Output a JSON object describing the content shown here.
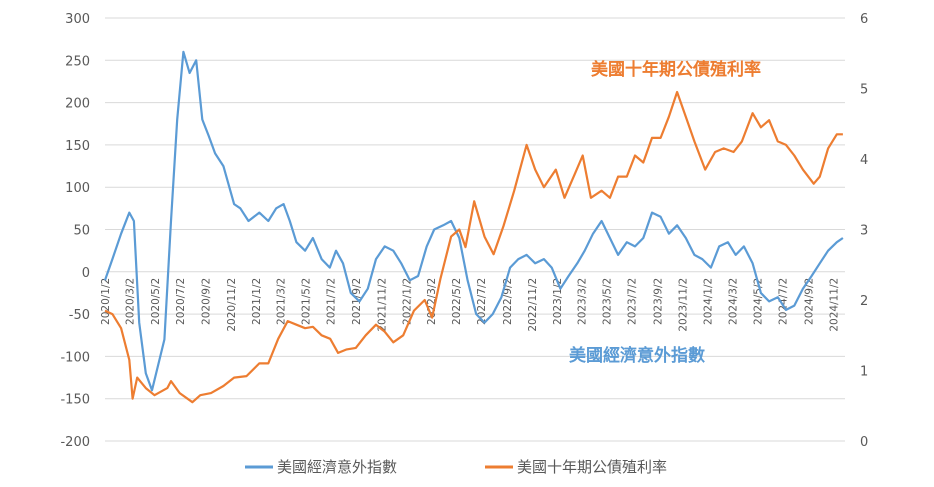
{
  "chart_data": {
    "type": "line",
    "title": "",
    "xlabel": "",
    "ylabel_left": "",
    "ylabel_right": "",
    "y_left_lim": [
      -200,
      300
    ],
    "y_left_ticks": [
      -200,
      -150,
      -100,
      -50,
      0,
      50,
      100,
      150,
      200,
      250,
      300
    ],
    "y_right_lim": [
      0,
      6
    ],
    "y_right_ticks": [
      0,
      1,
      2,
      3,
      4,
      5,
      6
    ],
    "x_lim": [
      "2020/1/2",
      "2024/11/30"
    ],
    "x_tick_labels": [
      "2020/1/2",
      "2020/3/2",
      "2020/5/2",
      "2020/7/2",
      "2020/9/2",
      "2020/11/2",
      "2021/1/2",
      "2021/3/2",
      "2021/5/2",
      "2021/7/2",
      "2021/9/2",
      "2021/11/2",
      "2022/1/2",
      "2022/3/2",
      "2022/5/2",
      "2022/7/2",
      "2022/9/2",
      "2022/11/2",
      "2023/1/2",
      "2023/3/2",
      "2023/5/2",
      "2023/7/2",
      "2023/9/2",
      "2023/11/2",
      "2024/1/2",
      "2024/3/2",
      "2024/5/2",
      "2024/7/2",
      "2024/9/2",
      "2024/11/2"
    ],
    "grid": "horizontal",
    "legend": "bottom",
    "series": [
      {
        "name": "美國經濟意外指數",
        "axis": "left",
        "color": "#5b9bd5",
        "points": [
          [
            "2020/1/2",
            -10
          ],
          [
            "2020/1/20",
            15
          ],
          [
            "2020/2/10",
            45
          ],
          [
            "2020/3/1",
            70
          ],
          [
            "2020/3/12",
            60
          ],
          [
            "2020/3/25",
            -60
          ],
          [
            "2020/4/10",
            -120
          ],
          [
            "2020/4/25",
            -140
          ],
          [
            "2020/5/10",
            -110
          ],
          [
            "2020/5/25",
            -80
          ],
          [
            "2020/6/10",
            60
          ],
          [
            "2020/6/25",
            180
          ],
          [
            "2020/7/10",
            260
          ],
          [
            "2020/7/25",
            235
          ],
          [
            "2020/8/10",
            250
          ],
          [
            "2020/8/25",
            180
          ],
          [
            "2020/9/10",
            160
          ],
          [
            "2020/9/25",
            140
          ],
          [
            "2020/10/15",
            125
          ],
          [
            "2020/11/10",
            80
          ],
          [
            "2020/11/25",
            75
          ],
          [
            "2020/12/15",
            60
          ],
          [
            "2021/1/10",
            70
          ],
          [
            "2021/2/1",
            60
          ],
          [
            "2021/2/20",
            75
          ],
          [
            "2021/3/10",
            80
          ],
          [
            "2021/3/25",
            60
          ],
          [
            "2021/4/10",
            35
          ],
          [
            "2021/5/1",
            25
          ],
          [
            "2021/5/20",
            40
          ],
          [
            "2021/6/10",
            15
          ],
          [
            "2021/6/30",
            5
          ],
          [
            "2021/7/15",
            25
          ],
          [
            "2021/8/1",
            10
          ],
          [
            "2021/8/20",
            -25
          ],
          [
            "2021/9/10",
            -35
          ],
          [
            "2021/9/30",
            -20
          ],
          [
            "2021/10/20",
            15
          ],
          [
            "2021/11/10",
            30
          ],
          [
            "2021/12/1",
            25
          ],
          [
            "2021/12/20",
            10
          ],
          [
            "2022/1/10",
            -10
          ],
          [
            "2022/1/30",
            -5
          ],
          [
            "2022/2/20",
            30
          ],
          [
            "2022/3/10",
            50
          ],
          [
            "2022/4/1",
            55
          ],
          [
            "2022/4/20",
            60
          ],
          [
            "2022/5/10",
            40
          ],
          [
            "2022/5/30",
            -10
          ],
          [
            "2022/6/20",
            -50
          ],
          [
            "2022/7/10",
            -60
          ],
          [
            "2022/7/30",
            -50
          ],
          [
            "2022/8/20",
            -30
          ],
          [
            "2022/9/10",
            5
          ],
          [
            "2022/9/30",
            15
          ],
          [
            "2022/10/20",
            20
          ],
          [
            "2022/11/10",
            10
          ],
          [
            "2022/12/1",
            15
          ],
          [
            "2022/12/20",
            5
          ],
          [
            "2023/1/10",
            -20
          ],
          [
            "2023/1/30",
            -5
          ],
          [
            "2023/2/20",
            10
          ],
          [
            "2023/3/10",
            25
          ],
          [
            "2023/3/30",
            45
          ],
          [
            "2023/4/20",
            60
          ],
          [
            "2023/5/10",
            40
          ],
          [
            "2023/5/30",
            20
          ],
          [
            "2023/6/20",
            35
          ],
          [
            "2023/7/10",
            30
          ],
          [
            "2023/7/30",
            40
          ],
          [
            "2023/8/20",
            70
          ],
          [
            "2023/9/10",
            65
          ],
          [
            "2023/9/30",
            45
          ],
          [
            "2023/10/20",
            55
          ],
          [
            "2023/11/10",
            40
          ],
          [
            "2023/12/1",
            20
          ],
          [
            "2023/12/20",
            15
          ],
          [
            "2024/1/10",
            5
          ],
          [
            "2024/1/30",
            30
          ],
          [
            "2024/2/20",
            35
          ],
          [
            "2024/3/10",
            20
          ],
          [
            "2024/3/30",
            30
          ],
          [
            "2024/4/20",
            10
          ],
          [
            "2024/5/10",
            -25
          ],
          [
            "2024/5/30",
            -35
          ],
          [
            "2024/6/20",
            -30
          ],
          [
            "2024/7/10",
            -45
          ],
          [
            "2024/7/30",
            -40
          ],
          [
            "2024/8/20",
            -20
          ],
          [
            "2024/9/10",
            -5
          ],
          [
            "2024/9/30",
            10
          ],
          [
            "2024/10/20",
            25
          ],
          [
            "2024/11/10",
            35
          ],
          [
            "2024/11/25",
            40
          ]
        ]
      },
      {
        "name": "美國十年期公債殖利率",
        "axis": "right",
        "color": "#ed7d31",
        "points": [
          [
            "2020/1/2",
            1.85
          ],
          [
            "2020/1/20",
            1.8
          ],
          [
            "2020/2/10",
            1.6
          ],
          [
            "2020/3/1",
            1.15
          ],
          [
            "2020/3/9",
            0.6
          ],
          [
            "2020/3/20",
            0.9
          ],
          [
            "2020/4/10",
            0.75
          ],
          [
            "2020/5/1",
            0.65
          ],
          [
            "2020/6/1",
            0.75
          ],
          [
            "2020/6/10",
            0.85
          ],
          [
            "2020/7/1",
            0.68
          ],
          [
            "2020/8/1",
            0.55
          ],
          [
            "2020/8/20",
            0.65
          ],
          [
            "2020/9/15",
            0.68
          ],
          [
            "2020/10/15",
            0.78
          ],
          [
            "2020/11/10",
            0.9
          ],
          [
            "2020/12/10",
            0.92
          ],
          [
            "2021/1/10",
            1.1
          ],
          [
            "2021/2/1",
            1.1
          ],
          [
            "2021/2/25",
            1.45
          ],
          [
            "2021/3/20",
            1.7
          ],
          [
            "2021/4/10",
            1.65
          ],
          [
            "2021/5/1",
            1.6
          ],
          [
            "2021/5/20",
            1.62
          ],
          [
            "2021/6/10",
            1.5
          ],
          [
            "2021/7/1",
            1.45
          ],
          [
            "2021/7/20",
            1.25
          ],
          [
            "2021/8/10",
            1.3
          ],
          [
            "2021/9/1",
            1.32
          ],
          [
            "2021/9/25",
            1.5
          ],
          [
            "2021/10/20",
            1.65
          ],
          [
            "2021/11/10",
            1.55
          ],
          [
            "2021/12/1",
            1.4
          ],
          [
            "2021/12/25",
            1.5
          ],
          [
            "2022/1/20",
            1.85
          ],
          [
            "2022/2/15",
            2.0
          ],
          [
            "2022/3/5",
            1.75
          ],
          [
            "2022/3/25",
            2.3
          ],
          [
            "2022/4/20",
            2.9
          ],
          [
            "2022/5/10",
            3.0
          ],
          [
            "2022/5/25",
            2.75
          ],
          [
            "2022/6/15",
            3.4
          ],
          [
            "2022/7/10",
            2.9
          ],
          [
            "2022/8/1",
            2.65
          ],
          [
            "2022/8/25",
            3.05
          ],
          [
            "2022/9/20",
            3.55
          ],
          [
            "2022/10/20",
            4.2
          ],
          [
            "2022/11/10",
            3.85
          ],
          [
            "2022/12/1",
            3.6
          ],
          [
            "2022/12/30",
            3.85
          ],
          [
            "2023/1/20",
            3.45
          ],
          [
            "2023/2/15",
            3.8
          ],
          [
            "2023/3/5",
            4.05
          ],
          [
            "2023/3/25",
            3.45
          ],
          [
            "2023/4/20",
            3.55
          ],
          [
            "2023/5/10",
            3.45
          ],
          [
            "2023/5/30",
            3.75
          ],
          [
            "2023/6/20",
            3.75
          ],
          [
            "2023/7/10",
            4.05
          ],
          [
            "2023/7/30",
            3.95
          ],
          [
            "2023/8/20",
            4.3
          ],
          [
            "2023/9/10",
            4.3
          ],
          [
            "2023/9/30",
            4.6
          ],
          [
            "2023/10/20",
            4.95
          ],
          [
            "2023/11/10",
            4.6
          ],
          [
            "2023/12/1",
            4.25
          ],
          [
            "2023/12/27",
            3.85
          ],
          [
            "2024/1/20",
            4.1
          ],
          [
            "2024/2/10",
            4.15
          ],
          [
            "2024/3/5",
            4.1
          ],
          [
            "2024/3/25",
            4.25
          ],
          [
            "2024/4/20",
            4.65
          ],
          [
            "2024/5/10",
            4.45
          ],
          [
            "2024/5/30",
            4.55
          ],
          [
            "2024/6/20",
            4.25
          ],
          [
            "2024/7/10",
            4.2
          ],
          [
            "2024/7/30",
            4.05
          ],
          [
            "2024/8/20",
            3.85
          ],
          [
            "2024/9/15",
            3.65
          ],
          [
            "2024/9/30",
            3.75
          ],
          [
            "2024/10/20",
            4.15
          ],
          [
            "2024/11/10",
            4.35
          ],
          [
            "2024/11/25",
            4.35
          ]
        ]
      }
    ],
    "annotations": [
      {
        "text": "美國十年期公債殖利率",
        "color": "#ed7d31"
      },
      {
        "text": "美國經濟意外指數",
        "color": "#5b9bd5"
      }
    ]
  }
}
